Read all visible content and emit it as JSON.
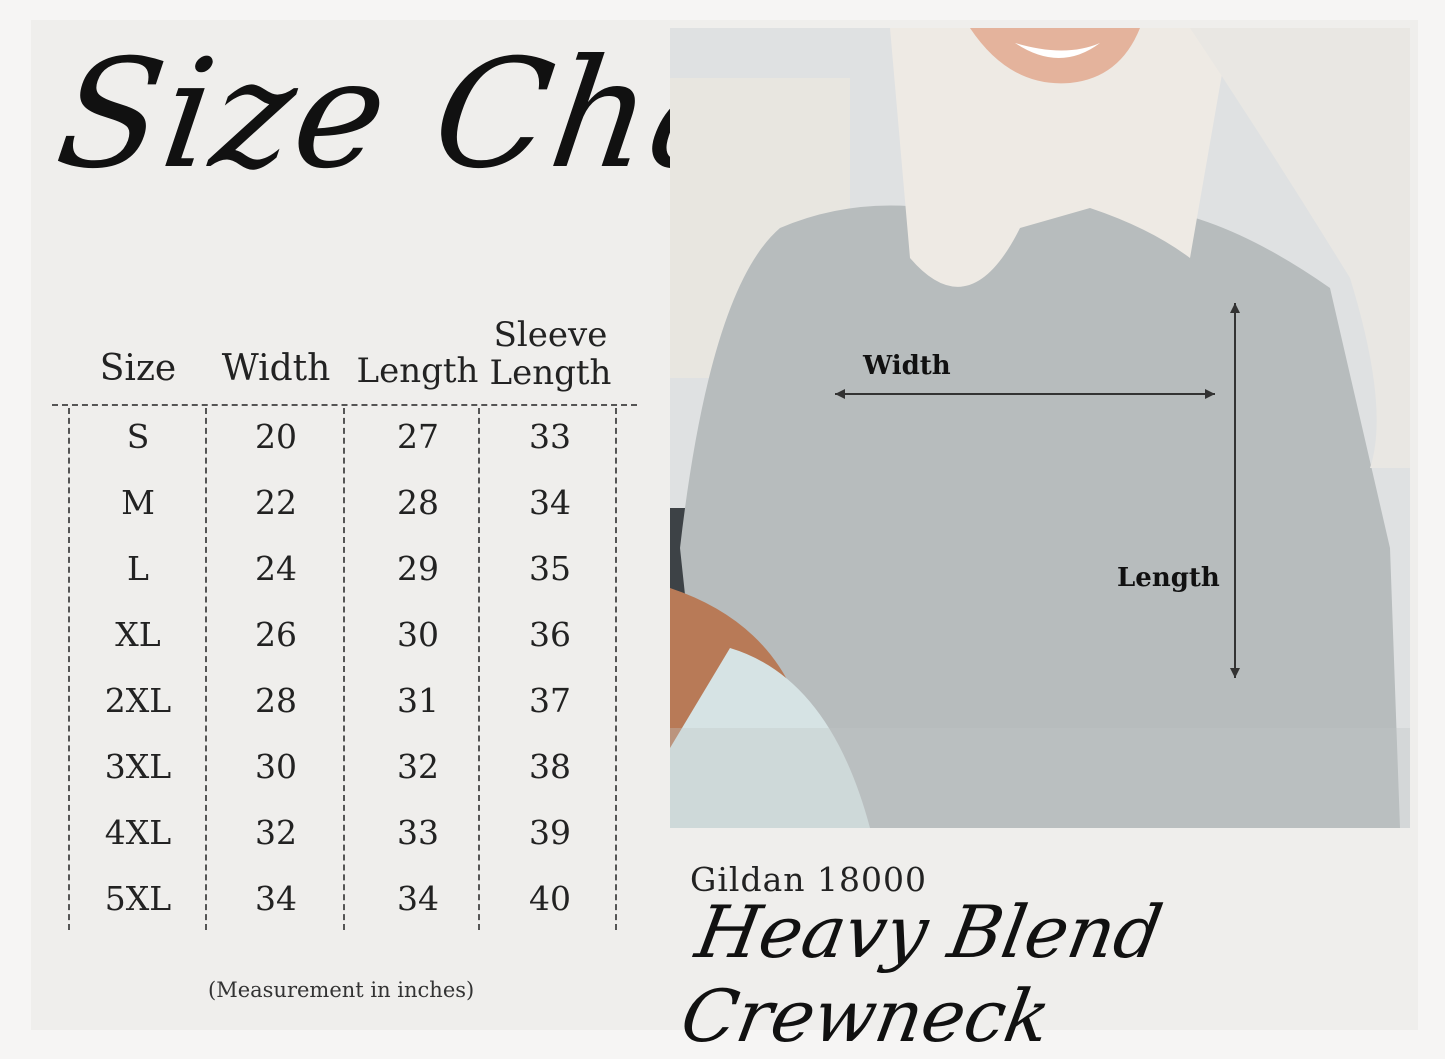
{
  "title": "Size Chart",
  "table": {
    "headers": [
      "Size",
      "Width",
      "Length",
      "Sleeve Length"
    ],
    "rows": [
      [
        "S",
        "20",
        "27",
        "33"
      ],
      [
        "M",
        "22",
        "28",
        "34"
      ],
      [
        "L",
        "24",
        "29",
        "35"
      ],
      [
        "XL",
        "26",
        "30",
        "36"
      ],
      [
        "2XL",
        "28",
        "31",
        "37"
      ],
      [
        "3XL",
        "30",
        "32",
        "38"
      ],
      [
        "4XL",
        "32",
        "33",
        "39"
      ],
      [
        "5XL",
        "34",
        "34",
        "40"
      ]
    ]
  },
  "note": "(Measurement in inches)",
  "photo": {
    "width_label": "Width",
    "length_label": "Length"
  },
  "product": {
    "model": "Gildan 18000",
    "name": "Heavy Blend Crewneck"
  }
}
